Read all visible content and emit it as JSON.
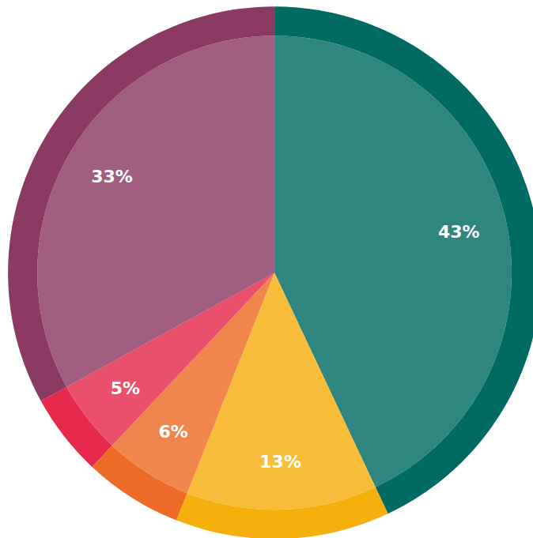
{
  "chart_data": {
    "type": "pie",
    "values": [
      43,
      13,
      6,
      5,
      33
    ],
    "value_labels": [
      "43%",
      "13%",
      "6%",
      "5%",
      "33%"
    ],
    "colors": [
      "#006b63",
      "#f6b00e",
      "#ee6a27",
      "#e52a4c",
      "#8a3a63"
    ],
    "data_labels": true
  }
}
